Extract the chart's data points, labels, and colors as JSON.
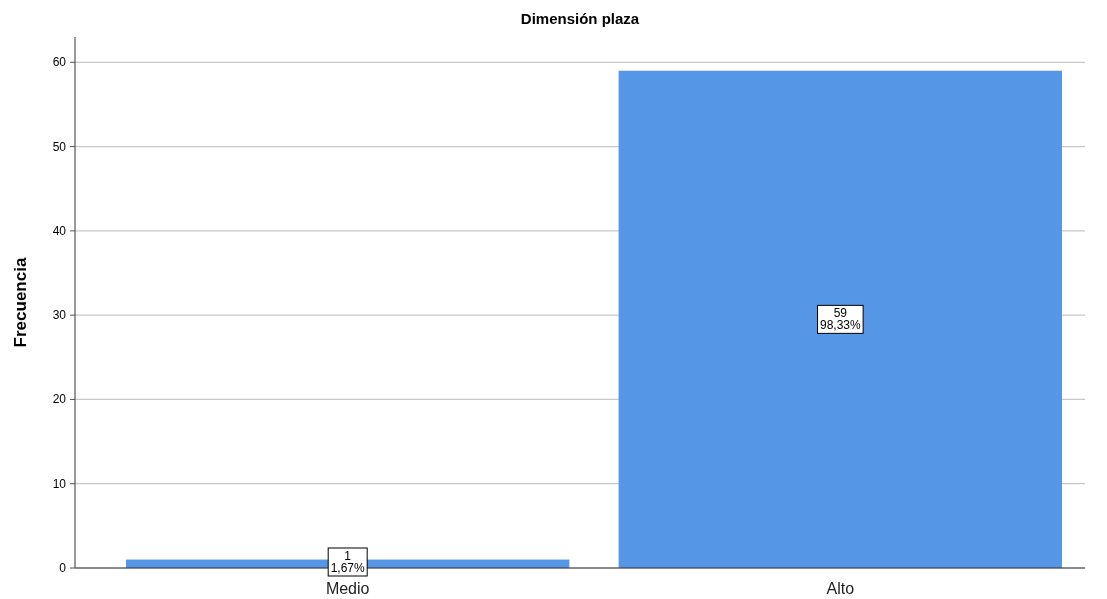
{
  "chart_data": {
    "type": "bar",
    "title": "Dimensión plaza",
    "ylabel": "Frecuencia",
    "categories": [
      "Medio",
      "Alto"
    ],
    "values": [
      1,
      59
    ],
    "value_labels": [
      "1\n1,67%",
      "59\n98,33%"
    ],
    "color": "#5596e6",
    "ylim": [
      0,
      63
    ],
    "yticks": [
      0,
      10,
      20,
      30,
      40,
      50,
      60
    ],
    "grid": "y"
  }
}
